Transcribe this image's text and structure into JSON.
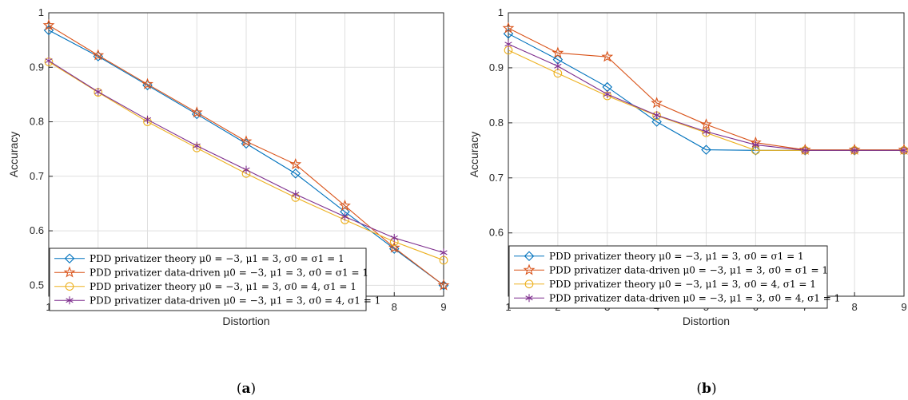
{
  "chart_data": [
    {
      "type": "line",
      "panel_label": "(a)",
      "caption_open": "(",
      "caption_letter": "a",
      "caption_close": ")",
      "xlabel": "Distortion",
      "ylabel": "Accuracy",
      "x": [
        1,
        2,
        3,
        4,
        5,
        6,
        7,
        8,
        9
      ],
      "xlim": [
        1,
        9
      ],
      "ylim": [
        0.48,
        1.0
      ],
      "xticks": [
        "1",
        "2",
        "3",
        "4",
        "5",
        "6",
        "7",
        "8",
        "9"
      ],
      "yticks": [
        {
          "value": 0.5,
          "label": "0.5"
        },
        {
          "value": 0.6,
          "label": "0.6"
        },
        {
          "value": 0.7,
          "label": "0.7"
        },
        {
          "value": 0.8,
          "label": "0.8"
        },
        {
          "value": 0.9,
          "label": "0.9"
        },
        {
          "value": 1.0,
          "label": "1"
        }
      ],
      "grid": true,
      "legend_position": "bottom-left",
      "series": [
        {
          "name": "PDD privatizer theory μ0 = −3, μ1 = 3, σ0 = σ1 = 1",
          "color": "#0072BD",
          "marker": "diamond",
          "values": [
            0.968,
            0.92,
            0.867,
            0.814,
            0.76,
            0.705,
            0.635,
            0.567,
            0.5
          ]
        },
        {
          "name": "PDD privatizer data-driven μ0 = −3, μ1 = 3, σ0 = σ1 = 1",
          "color": "#D95319",
          "marker": "star",
          "values": [
            0.977,
            0.922,
            0.869,
            0.817,
            0.764,
            0.722,
            0.646,
            0.569,
            0.5
          ]
        },
        {
          "name": "PDD privatizer theory μ0 = −3, μ1 = 3, σ0 = 4, σ1 = 1",
          "color": "#EDB120",
          "marker": "circle",
          "values": [
            0.91,
            0.854,
            0.8,
            0.752,
            0.705,
            0.661,
            0.62,
            0.58,
            0.546
          ]
        },
        {
          "name": "PDD privatizer data-driven μ0 = −3, μ1 = 3, σ0 = 4, σ1 = 1",
          "color": "#7E2F8E",
          "marker": "asterisk",
          "values": [
            0.912,
            0.855,
            0.804,
            0.756,
            0.712,
            0.667,
            0.626,
            0.587,
            0.56
          ]
        }
      ]
    },
    {
      "type": "line",
      "panel_label": "(b)",
      "caption_open": "(",
      "caption_letter": "b",
      "caption_close": ")",
      "xlabel": "Distortion",
      "ylabel": "Accuracy",
      "x": [
        1,
        2,
        3,
        4,
        5,
        6,
        7,
        8,
        9
      ],
      "xlim": [
        1,
        9
      ],
      "ylim": [
        0.485,
        1.0
      ],
      "xticks": [
        "1",
        "2",
        "3",
        "4",
        "5",
        "6",
        "7",
        "8",
        "9"
      ],
      "yticks": [
        {
          "value": 0.6,
          "label": "0.6"
        },
        {
          "value": 0.7,
          "label": "0.7"
        },
        {
          "value": 0.8,
          "label": "0.8"
        },
        {
          "value": 0.9,
          "label": "0.9"
        },
        {
          "value": 1.0,
          "label": "1"
        }
      ],
      "grid": true,
      "legend_position": "bottom-left",
      "series": [
        {
          "name": "PDD privatizer theory μ0 = −3, μ1 = 3, σ0 = σ1 = 1",
          "color": "#0072BD",
          "marker": "diamond",
          "values": [
            0.962,
            0.915,
            0.865,
            0.802,
            0.751,
            0.75,
            0.75,
            0.75,
            0.75
          ]
        },
        {
          "name": "PDD privatizer data-driven μ0 = −3, μ1 = 3, σ0 = σ1 = 1",
          "color": "#D95319",
          "marker": "star",
          "values": [
            0.972,
            0.927,
            0.92,
            0.836,
            0.797,
            0.764,
            0.751,
            0.751,
            0.751
          ]
        },
        {
          "name": "PDD privatizer theory μ0 = −3, μ1 = 3, σ0 = 4, σ1 = 1",
          "color": "#EDB120",
          "marker": "circle",
          "values": [
            0.932,
            0.89,
            0.849,
            0.813,
            0.782,
            0.75,
            0.75,
            0.75,
            0.75
          ]
        },
        {
          "name": "PDD privatizer data-driven μ0 = −3, μ1 = 3, σ0 = 4, σ1 = 1",
          "color": "#7E2F8E",
          "marker": "asterisk",
          "values": [
            0.943,
            0.903,
            0.852,
            0.814,
            0.784,
            0.76,
            0.75,
            0.75,
            0.75
          ]
        }
      ]
    }
  ]
}
